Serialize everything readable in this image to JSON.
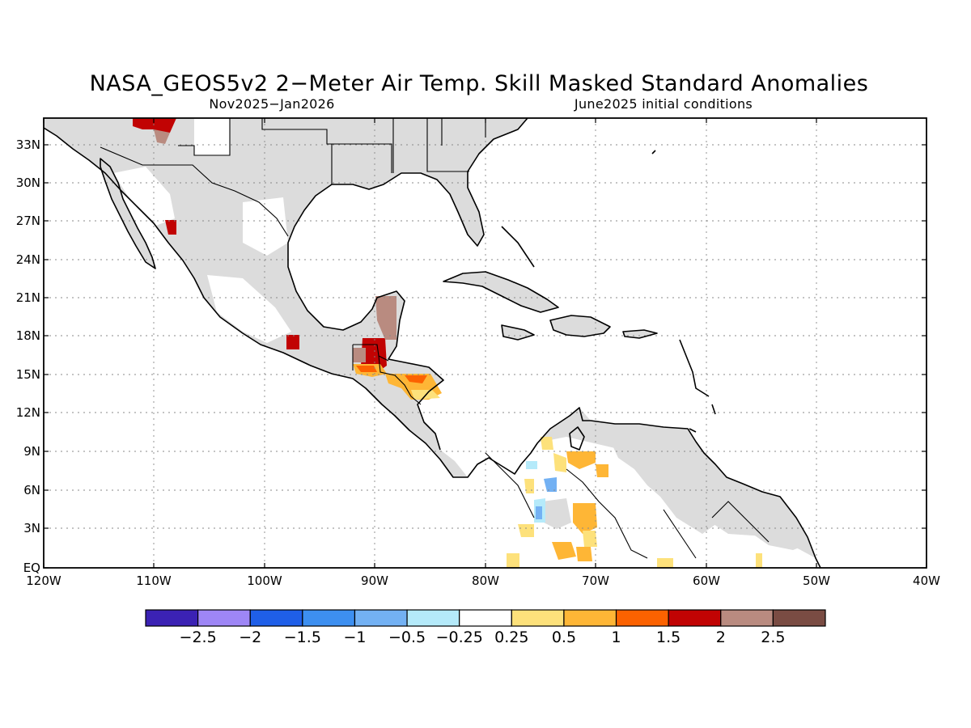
{
  "title": "NASA_GEOS5v2 2−Meter Air Temp. Skill Masked Standard Anomalies",
  "subtitle_left": "Nov2025−Jan2026",
  "subtitle_right": "June2025 initial conditions",
  "lat_labels": [
    "33N",
    "30N",
    "27N",
    "24N",
    "21N",
    "18N",
    "15N",
    "12N",
    "9N",
    "6N",
    "3N",
    "EQ"
  ],
  "lon_labels": [
    "120W",
    "110W",
    "100W",
    "90W",
    "80W",
    "70W",
    "60W",
    "50W",
    "40W"
  ],
  "colorbar": {
    "labels": [
      "−2.5",
      "−2",
      "−1.5",
      "−1",
      "−0.5",
      "−0.25",
      "0.25",
      "0.5",
      "1",
      "1.5",
      "2",
      "2.5"
    ],
    "colors": [
      "#3b22b4",
      "#9e86f6",
      "#1f5fe8",
      "#3d8ff0",
      "#73b1f3",
      "#b5eafa",
      "#ffffff",
      "#fde17b",
      "#feb636",
      "#fc6200",
      "#c10303",
      "#b98b80",
      "#7a4c43"
    ]
  }
}
